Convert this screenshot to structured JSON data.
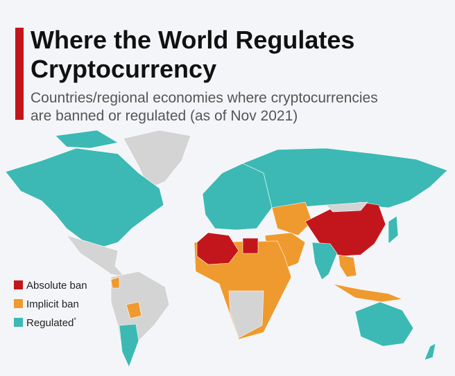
{
  "header": {
    "title_lines": [
      "Where the World Regulates",
      "Cryptocurrency"
    ],
    "subtitle_lines": [
      "Countries/regional economies where cryptocurrencies",
      "are banned or regulated (as of Nov 2021)"
    ]
  },
  "legend": {
    "items": [
      {
        "label": "Absolute ban",
        "color": "#c3161c"
      },
      {
        "label": "Implicit ban",
        "color": "#ef9a2e"
      },
      {
        "label": "Regulated",
        "note_mark": "*",
        "color": "#3cb9b4"
      }
    ]
  }
}
